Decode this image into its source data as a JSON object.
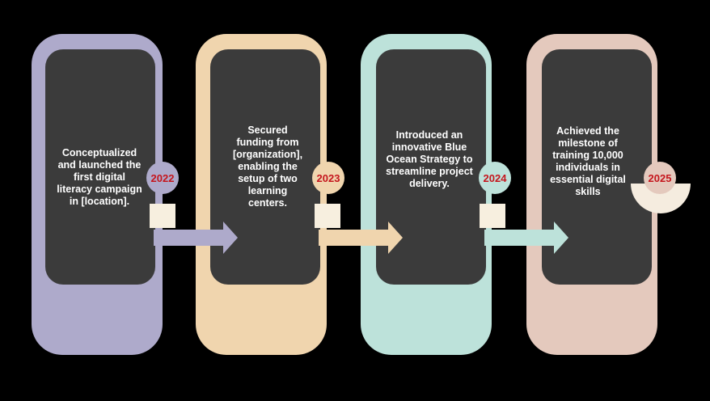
{
  "timeline": {
    "items": [
      {
        "year": "2022",
        "description": "Conceptualized and launched the first digital literacy campaign in [location].",
        "color": "#aeaacb"
      },
      {
        "year": "2023",
        "description": "Secured funding from [organization], enabling the setup of two learning centers.",
        "color": "#f0d5ae"
      },
      {
        "year": "2024",
        "description": "Introduced an innovative Blue Ocean Strategy to streamline project delivery.",
        "color": "#bde2da"
      },
      {
        "year": "2025",
        "description": "Achieved the milestone of training 10,000 individuals in essential digital skills",
        "color": "#e4c9bd"
      }
    ],
    "year_text_color": "#c5161d",
    "card_inner_color": "#3b3b3b",
    "connector_icon": "right-arrow-icon"
  }
}
